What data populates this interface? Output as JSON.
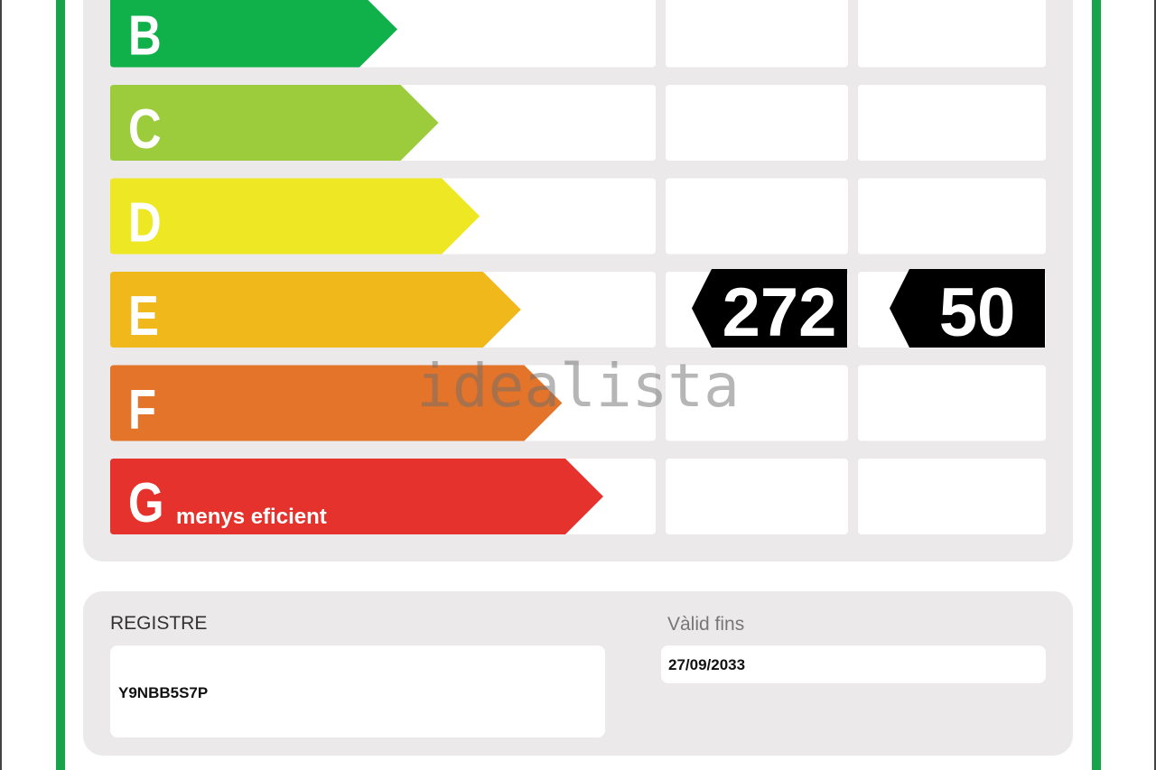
{
  "rows": [
    {
      "letter": "B",
      "color": "#10b04b"
    },
    {
      "letter": "C",
      "color": "#9ccb3c"
    },
    {
      "letter": "D",
      "color": "#eee824"
    },
    {
      "letter": "E",
      "color": "#f1b81c"
    },
    {
      "letter": "F",
      "color": "#e37429"
    },
    {
      "letter": "G",
      "color": "#e5322c",
      "note": "menys eficient"
    }
  ],
  "badges": {
    "row": 3,
    "values": [
      "272",
      "50"
    ]
  },
  "watermark": "idealista",
  "registry": {
    "label": "REGISTRE",
    "value": "Y9NBB5S7P"
  },
  "validity": {
    "label": "Vàlid fins",
    "value": "27/09/2033"
  }
}
